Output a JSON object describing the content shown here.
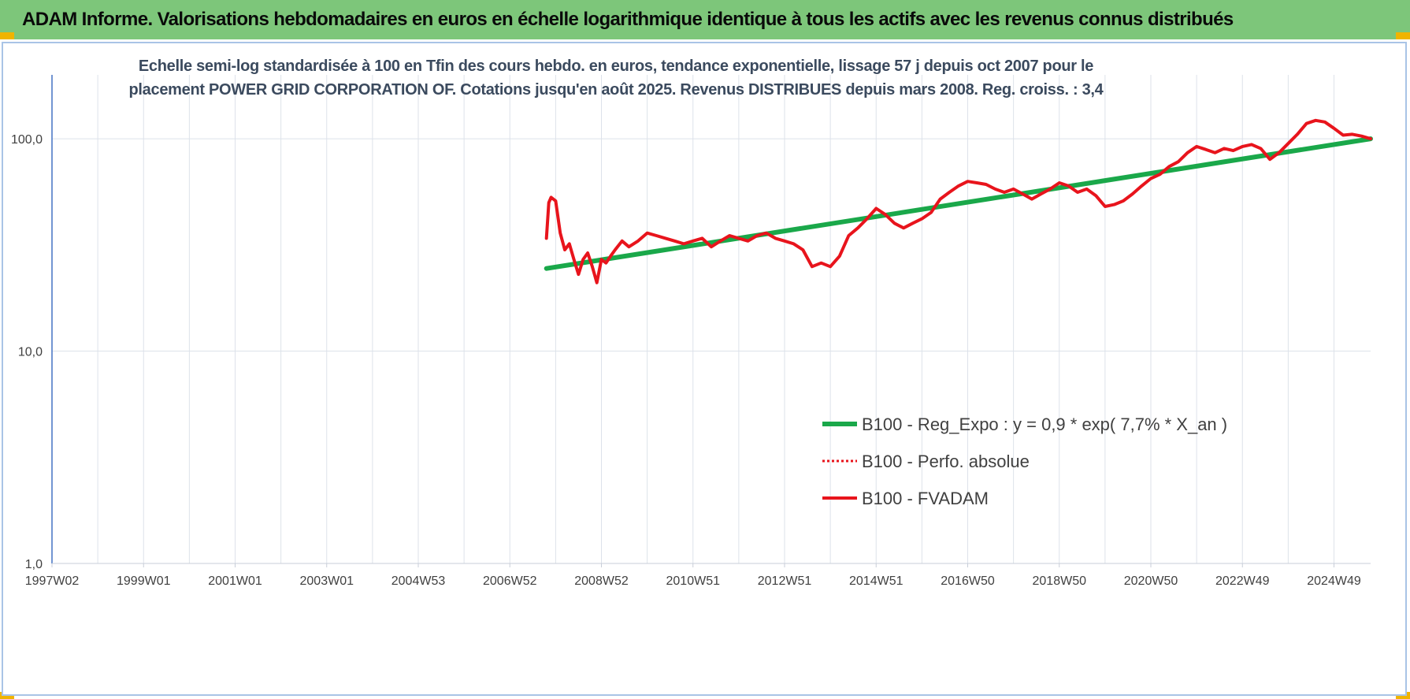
{
  "banner": {
    "title": "ADAM Informe. Valorisations hebdomadaires en euros en échelle logarithmique identique à tous les actifs avec les revenus connus distribués"
  },
  "colors": {
    "banner_bg": "#7dc67a",
    "corner_accent": "#f0b400",
    "regression": "#1aa84a",
    "fvadam": "#e8141c",
    "perfo_absolue": "#e8141c",
    "axis": "#4472c4",
    "grid": "#dde2ea"
  },
  "chart_data": {
    "type": "line",
    "title_lines": [
      "Echelle semi-log standardisée à 100 en Tfin des cours hebdo. en euros, tendance exponentielle, lissage 57 j depuis oct 2007 pour le",
      "placement POWER GRID CORPORATION OF. Cotations jusqu'en août 2025. Revenus DISTRIBUES depuis mars 2008. Reg. croiss. : 3,4"
    ],
    "y_scale": "log",
    "ylim": [
      1,
      200
    ],
    "y_ticks": [
      {
        "value": 100,
        "label": "100,0"
      },
      {
        "value": 10,
        "label": "10,0"
      },
      {
        "value": 1,
        "label": "1,0"
      }
    ],
    "xlim": [
      1997.0,
      2025.8
    ],
    "x_tick_labels": [
      {
        "label": "1997W02",
        "x": 1997.0
      },
      {
        "label": "1999W01",
        "x": 1999.0
      },
      {
        "label": "2001W01",
        "x": 2001.0
      },
      {
        "label": "2003W01",
        "x": 2003.0
      },
      {
        "label": "2004W53",
        "x": 2005.0
      },
      {
        "label": "2006W52",
        "x": 2007.0
      },
      {
        "label": "2008W52",
        "x": 2009.0
      },
      {
        "label": "2010W51",
        "x": 2011.0
      },
      {
        "label": "2012W51",
        "x": 2013.0
      },
      {
        "label": "2014W51",
        "x": 2015.0
      },
      {
        "label": "2016W50",
        "x": 2017.0
      },
      {
        "label": "2018W50",
        "x": 2019.0
      },
      {
        "label": "2020W50",
        "x": 2021.0
      },
      {
        "label": "2022W49",
        "x": 2023.0
      },
      {
        "label": "2024W49",
        "x": 2025.0
      }
    ],
    "series": [
      {
        "name": "B100 - Reg_Expo : y = 0,9 * exp( 7,7% *  X_an )",
        "style": "solid-thick",
        "x": [
          2007.8,
          2025.8
        ],
        "y": [
          24.5,
          100
        ]
      },
      {
        "name": "B100 - Perfo. absolue",
        "style": "dotted",
        "x": [],
        "y": []
      },
      {
        "name": "B100 - FVADAM",
        "style": "solid-thick",
        "x": [
          2007.8,
          2007.85,
          2007.9,
          2008.0,
          2008.1,
          2008.2,
          2008.3,
          2008.4,
          2008.5,
          2008.6,
          2008.7,
          2008.8,
          2008.9,
          2009.0,
          2009.1,
          2009.2,
          2009.3,
          2009.45,
          2009.6,
          2009.8,
          2010.0,
          2010.2,
          2010.4,
          2010.6,
          2010.8,
          2011.0,
          2011.2,
          2011.4,
          2011.6,
          2011.8,
          2012.0,
          2012.2,
          2012.4,
          2012.6,
          2012.8,
          2013.0,
          2013.2,
          2013.4,
          2013.6,
          2013.8,
          2014.0,
          2014.2,
          2014.4,
          2014.6,
          2014.8,
          2015.0,
          2015.2,
          2015.4,
          2015.6,
          2015.8,
          2016.0,
          2016.2,
          2016.4,
          2016.6,
          2016.8,
          2017.0,
          2017.2,
          2017.4,
          2017.6,
          2017.8,
          2018.0,
          2018.2,
          2018.4,
          2018.6,
          2018.8,
          2019.0,
          2019.2,
          2019.4,
          2019.6,
          2019.8,
          2020.0,
          2020.2,
          2020.4,
          2020.6,
          2020.8,
          2021.0,
          2021.2,
          2021.4,
          2021.6,
          2021.8,
          2022.0,
          2022.2,
          2022.4,
          2022.6,
          2022.8,
          2023.0,
          2023.2,
          2023.4,
          2023.6,
          2023.8,
          2024.0,
          2024.2,
          2024.4,
          2024.6,
          2024.8,
          2025.0,
          2025.2,
          2025.4,
          2025.6,
          2025.8
        ],
        "y": [
          34,
          50,
          53,
          51,
          36,
          30,
          32,
          27,
          23,
          27,
          29,
          25,
          21,
          27,
          26,
          28,
          30,
          33,
          31,
          33,
          36,
          35,
          34,
          33,
          32,
          33,
          34,
          31,
          33,
          35,
          34,
          33,
          35,
          36,
          34,
          33,
          32,
          30,
          25,
          26,
          25,
          28,
          35,
          38,
          42,
          47,
          44,
          40,
          38,
          40,
          42,
          45,
          52,
          56,
          60,
          63,
          62,
          61,
          58,
          56,
          58,
          55,
          52,
          55,
          58,
          62,
          60,
          56,
          58,
          54,
          48,
          49,
          51,
          55,
          60,
          65,
          68,
          74,
          78,
          86,
          92,
          89,
          86,
          90,
          88,
          92,
          94,
          90,
          80,
          86,
          95,
          105,
          118,
          122,
          120,
          112,
          104,
          105,
          103,
          100
        ]
      }
    ],
    "legend_placement": "bottom-right",
    "grid": {
      "vertical": true,
      "horizontal": true
    }
  }
}
